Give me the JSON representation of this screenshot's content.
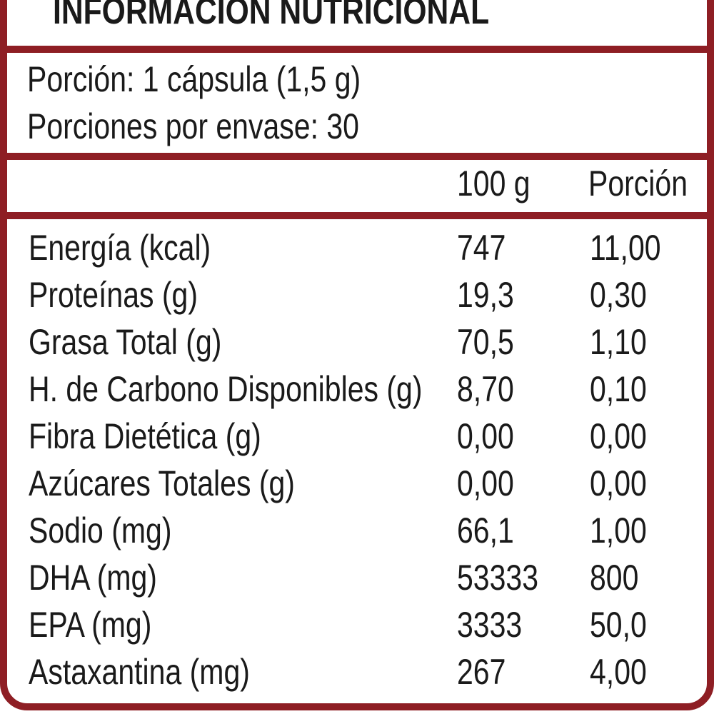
{
  "title": "INFORMACIÓN NUTRICIONAL",
  "serving": {
    "portion": "Porción: 1 cápsula (1,5 g)",
    "per_container": "Porciones por envase: 30"
  },
  "columns": {
    "per_100g": "100 g",
    "per_portion": "Porción"
  },
  "rows": [
    {
      "name": "Energía (kcal)",
      "per_100g": "747",
      "per_portion": "11,00"
    },
    {
      "name": "Proteínas (g)",
      "per_100g": "19,3",
      "per_portion": "0,30"
    },
    {
      "name": "Grasa Total (g)",
      "per_100g": "70,5",
      "per_portion": "1,10"
    },
    {
      "name": "H. de Carbono Disponibles (g)",
      "per_100g": "8,70",
      "per_portion": "0,10"
    },
    {
      "name": "Fibra Dietética (g)",
      "per_100g": "0,00",
      "per_portion": "0,00"
    },
    {
      "name": "Azúcares Totales (g)",
      "per_100g": "0,00",
      "per_portion": "0,00"
    },
    {
      "name": "Sodio (mg)",
      "per_100g": "66,1",
      "per_portion": "1,00"
    },
    {
      "name": "DHA (mg)",
      "per_100g": "53333",
      "per_portion": "800"
    },
    {
      "name": "EPA (mg)",
      "per_100g": "3333",
      "per_portion": "50,0"
    },
    {
      "name": "Astaxantina (mg)",
      "per_100g": "267",
      "per_portion": "4,00"
    }
  ],
  "colors": {
    "frame": "#8e1e24",
    "text": "#1a1a1a",
    "background": "#ffffff"
  }
}
